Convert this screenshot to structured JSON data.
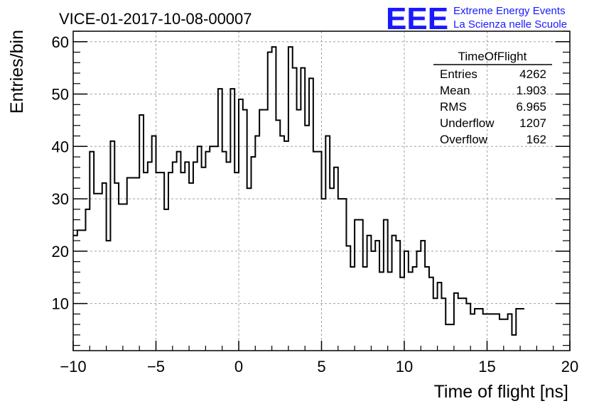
{
  "logo": {
    "mark": "EEE",
    "line1": "Extreme Energy Events",
    "line2": "La Scienza nelle Scuole"
  },
  "stats_box": {
    "title": "TimeOfFlight",
    "rows": [
      {
        "label": "Entries",
        "value": "4262"
      },
      {
        "label": "Mean",
        "value": "1.903"
      },
      {
        "label": "RMS",
        "value": "6.965"
      },
      {
        "label": "Underflow",
        "value": "1207"
      },
      {
        "label": "Overflow",
        "value": "162"
      }
    ]
  },
  "colors": {
    "histogram_line": "#000000",
    "grid": "#a0a0a0",
    "logo": "#1a1aff"
  },
  "chart_data": {
    "type": "histogram",
    "title": "VICE-01-2017-10-08-00007",
    "xlabel": "Time of flight [ns]",
    "ylabel": "Entries/bin",
    "xlim": [
      -10,
      20
    ],
    "ylim": [
      1,
      62
    ],
    "xticks": [
      -10,
      -5,
      0,
      5,
      10,
      15,
      20
    ],
    "yticks": [
      10,
      20,
      30,
      40,
      50,
      60
    ],
    "grid": true,
    "bin_width": 0.25,
    "bin_start": -10,
    "values": [
      23,
      24,
      24,
      28,
      39,
      31,
      31,
      33,
      22,
      41,
      33,
      29,
      29,
      34,
      34,
      34,
      46,
      35,
      37,
      42,
      35,
      35,
      28,
      35,
      37,
      39,
      35,
      37,
      33,
      37,
      40,
      36,
      39,
      40,
      40,
      51,
      39,
      37,
      51,
      35,
      49,
      47,
      32,
      38,
      42,
      47,
      47,
      58,
      59,
      45,
      42,
      41,
      59,
      55,
      47,
      55,
      44,
      53,
      39,
      39,
      30,
      42,
      32,
      36,
      30,
      30,
      21,
      17,
      26,
      26,
      17,
      23,
      20,
      22,
      16,
      26,
      16,
      23,
      22,
      15,
      20,
      16,
      17,
      20,
      22,
      17,
      15,
      11,
      14,
      11,
      6,
      6,
      12,
      11,
      11,
      10,
      8,
      9,
      9,
      8,
      8,
      8,
      8,
      7,
      7,
      8,
      4,
      9,
      9
    ]
  }
}
